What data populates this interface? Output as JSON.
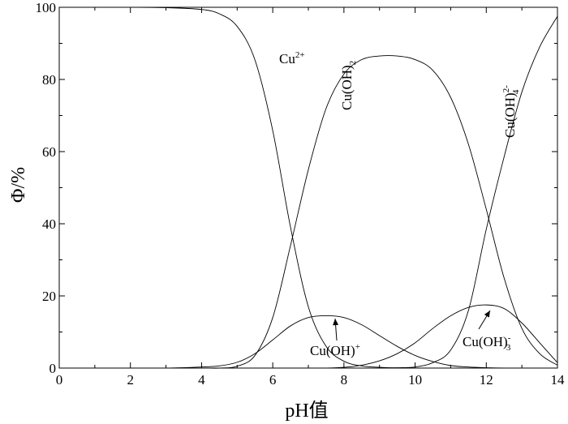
{
  "chart_data": {
    "type": "line",
    "xlabel": "pH值",
    "ylabel": "Φ/%",
    "xlim": [
      0,
      14
    ],
    "ylim": [
      0,
      100
    ],
    "xticks": [
      "0",
      "2",
      "4",
      "6",
      "8",
      "10",
      "12",
      "14"
    ],
    "yticks": [
      "0",
      "20",
      "40",
      "60",
      "80",
      "100"
    ],
    "grid": false,
    "x": [
      0,
      1,
      2,
      3,
      4,
      4.5,
      5,
      5.5,
      6,
      6.5,
      7,
      7.5,
      8,
      8.5,
      9,
      9.5,
      10,
      10.5,
      11,
      11.5,
      12,
      12.5,
      13,
      13.5,
      14
    ],
    "series": [
      {
        "name": "Cu2+",
        "label": {
          "base": "Cu",
          "sup": "2+",
          "sub": "",
          "after": ""
        },
        "values": [
          100,
          100,
          100,
          99.9,
          99.4,
          98.2,
          94.7,
          85.4,
          65.8,
          39,
          17,
          6,
          1.9,
          0.6,
          0.2,
          0,
          0,
          0,
          0,
          0,
          0,
          0,
          0,
          0,
          0
        ]
      },
      {
        "name": "Cu(OH)+",
        "label": {
          "base": "Cu(OH)",
          "sup": "+",
          "sub": "",
          "after": ""
        },
        "values": [
          0,
          0,
          0,
          0,
          0.3,
          0.6,
          1.6,
          4,
          7.8,
          11.7,
          14,
          14.5,
          14,
          12,
          9,
          6,
          3.5,
          1.8,
          0.7,
          0.3,
          0.1,
          0,
          0,
          0,
          0
        ]
      },
      {
        "name": "Cu(OH)2",
        "label": {
          "base": "Cu(OH)",
          "sup": "",
          "sub": "2",
          "after": ""
        },
        "values": [
          0,
          0,
          0,
          0,
          0,
          0,
          0.5,
          3.5,
          14,
          34,
          55,
          72,
          81.5,
          85.5,
          86.5,
          86.5,
          85.5,
          82.5,
          75,
          62,
          44,
          25,
          11,
          4,
          0.8
        ]
      },
      {
        "name": "Cu(OH)3-",
        "label": {
          "base": "Cu(OH)",
          "sup": "-",
          "sub": "3",
          "after": ""
        },
        "values": [
          0,
          0,
          0,
          0,
          0,
          0,
          0,
          0,
          0,
          0,
          0,
          0,
          0.2,
          0.8,
          2,
          4,
          7,
          11,
          14.5,
          16.8,
          17.5,
          16.5,
          12.5,
          7,
          1.5
        ]
      },
      {
        "name": "Cu(OH)42-",
        "label": {
          "base": "Cu(OH)",
          "sup": "2-",
          "sub": "4",
          "after": ""
        },
        "values": [
          0,
          0,
          0,
          0,
          0,
          0,
          0,
          0,
          0,
          0,
          0,
          0,
          0,
          0,
          0,
          0.1,
          0.3,
          1.5,
          5,
          16,
          38.5,
          58.5,
          76.5,
          89,
          97.5
        ]
      }
    ],
    "annotations": [
      {
        "target": "Cu(OH)+",
        "text": "Cu(OH)+",
        "style": "arrow"
      },
      {
        "target": "Cu(OH)3-",
        "text": "Cu(OH)3-",
        "style": "arrow"
      }
    ]
  }
}
